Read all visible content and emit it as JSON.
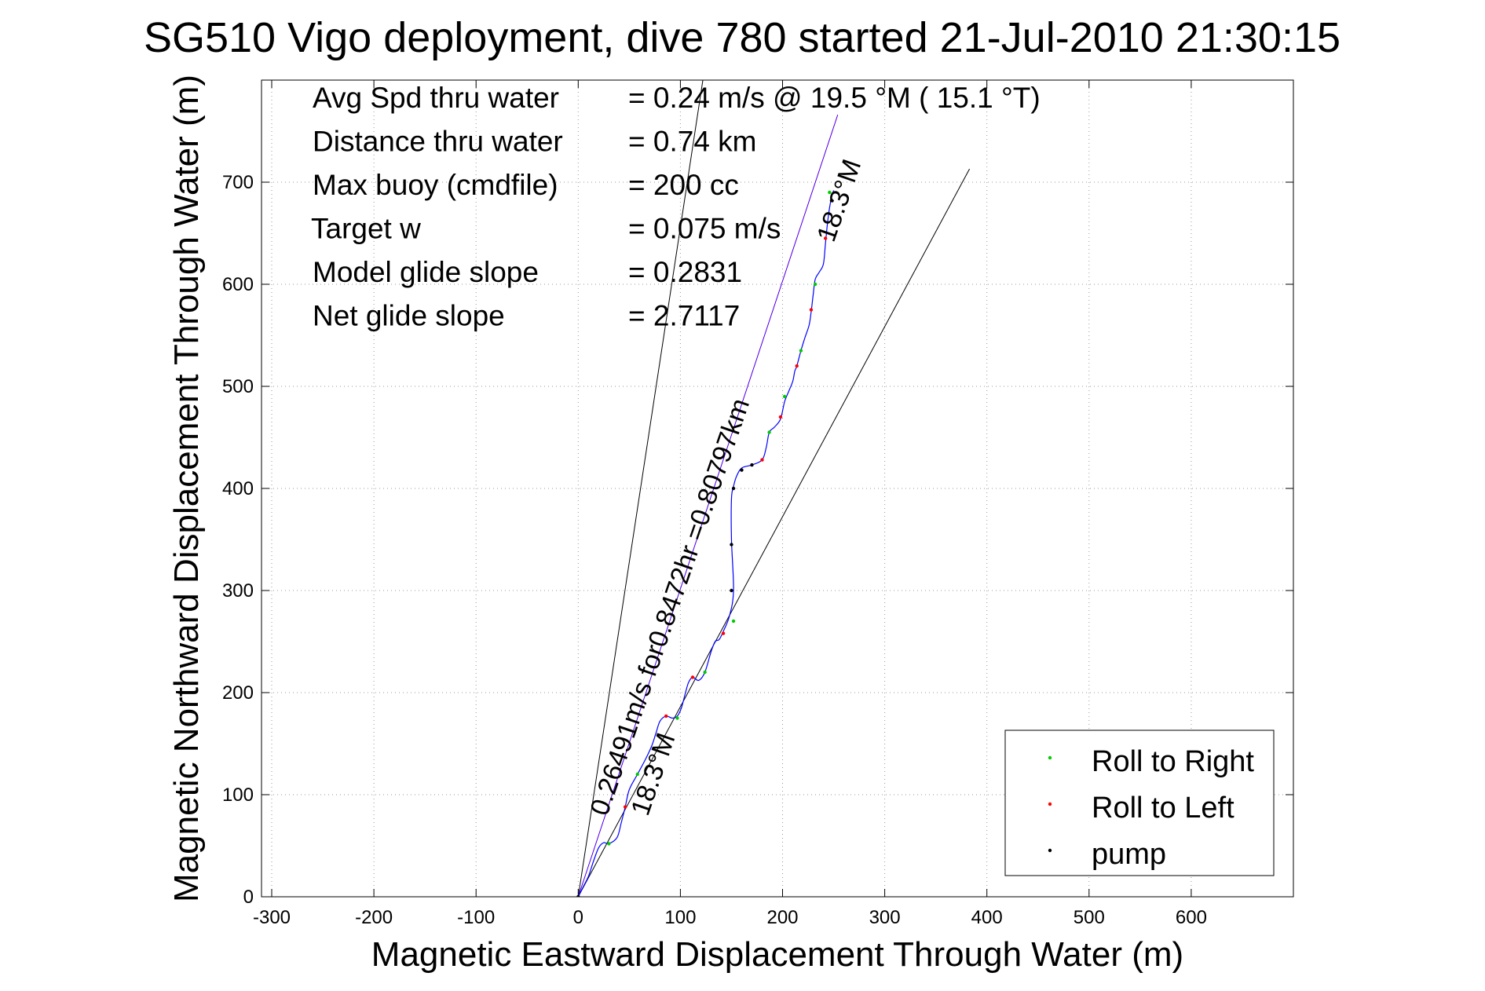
{
  "chart_data": {
    "type": "line",
    "title": "SG510 Vigo deployment, dive 780 started 21-Jul-2010 21:30:15",
    "xlabel": "Magnetic Eastward Displacement Through Water (m)",
    "ylabel": "Magnetic Northward Displacement Through Water (m)",
    "xlim": [
      -310,
      700
    ],
    "ylim": [
      0,
      800
    ],
    "xticks": [
      -300,
      -200,
      -100,
      0,
      100,
      200,
      300,
      400,
      500,
      600
    ],
    "xtick_labels": [
      "-300",
      "-200",
      "-100",
      "0",
      "100",
      "200",
      "300",
      "400",
      "500",
      "600"
    ],
    "yticks": [
      0,
      100,
      200,
      300,
      400,
      500,
      600,
      700
    ],
    "ytick_labels": [
      "0",
      "100",
      "200",
      "300",
      "400",
      "500",
      "600",
      "700"
    ],
    "grid": true,
    "legend_position": "bottom-right",
    "stats": [
      {
        "label": "Avg Spd thru water",
        "value": "=  0.24 m/s @  19.5 °M ( 15.1 °T)"
      },
      {
        "label": "Distance thru water",
        "value": "=  0.74 km"
      },
      {
        "label": "Max buoy (cmdfile)",
        "value": "= 200 cc"
      },
      {
        "label": "Target w",
        "value": "= 0.075 m/s"
      },
      {
        "label": "Model glide slope",
        "value": "= 0.2831"
      },
      {
        "label": "Net glide slope",
        "value": "= 2.7117"
      }
    ],
    "track": {
      "x": [
        0,
        5,
        10,
        15,
        20,
        25,
        30,
        38,
        42,
        46,
        50,
        58,
        66,
        72,
        76,
        80,
        86,
        92,
        97,
        101,
        105,
        108,
        112,
        118,
        124,
        130,
        134,
        138,
        142,
        148,
        152,
        150,
        150,
        152,
        155,
        160,
        170,
        180,
        184,
        187,
        192,
        198,
        202,
        206,
        210,
        212,
        214,
        218,
        222,
        226,
        228,
        230,
        232,
        236,
        240,
        242,
        244,
        246,
        248,
        250
      ],
      "y": [
        0,
        10,
        20,
        35,
        48,
        53,
        52,
        58,
        72,
        88,
        105,
        120,
        135,
        148,
        160,
        172,
        177,
        175,
        177,
        185,
        200,
        210,
        215,
        212,
        220,
        240,
        250,
        252,
        260,
        275,
        300,
        350,
        390,
        402,
        412,
        420,
        423,
        428,
        440,
        455,
        460,
        468,
        485,
        495,
        505,
        515,
        520,
        535,
        548,
        560,
        573,
        590,
        605,
        612,
        620,
        640,
        660,
        675,
        685,
        692
      ]
    },
    "markers": {
      "roll_right": {
        "x": [
          30,
          58,
          97,
          124,
          152,
          187,
          202,
          218,
          232,
          246
        ],
        "y": [
          52,
          120,
          175,
          220,
          270,
          455,
          490,
          535,
          600,
          690
        ]
      },
      "roll_left": {
        "x": [
          46,
          86,
          112,
          142,
          180,
          198,
          214,
          228,
          242
        ],
        "y": [
          88,
          177,
          215,
          258,
          428,
          470,
          520,
          575,
          645
        ]
      },
      "pump": {
        "x": [
          0,
          150,
          150,
          152,
          160,
          170,
          248
        ],
        "y": [
          0,
          300,
          345,
          400,
          418,
          423,
          682
        ]
      }
    },
    "reference_lines": [
      {
        "color": "#000000",
        "x": [
          0,
          122
        ],
        "y": [
          0,
          800
        ]
      },
      {
        "color": "#000000",
        "x": [
          0,
          383
        ],
        "y": [
          0,
          713
        ]
      },
      {
        "color": "#cc00cc",
        "x": [
          0,
          254
        ],
        "y": [
          0,
          766
        ]
      },
      {
        "color": "#0000ff",
        "x": [
          0,
          254
        ],
        "y": [
          0,
          766
        ]
      }
    ],
    "annotations": [
      {
        "text": "0.26491m/s for0.8472hr =0.80797km",
        "x": 28,
        "y": 78,
        "rotation_deg": -71
      },
      {
        "text": "18.3°M",
        "x": 68,
        "y": 78,
        "rotation_deg": -71
      },
      {
        "text": "18.3°M",
        "x": 250,
        "y": 640,
        "rotation_deg": -71
      }
    ],
    "series": [
      {
        "name": "Roll to Right",
        "color": "#00cc00"
      },
      {
        "name": "Roll to Left",
        "color": "#ff0000"
      },
      {
        "name": "pump",
        "color": "#000000"
      }
    ]
  }
}
